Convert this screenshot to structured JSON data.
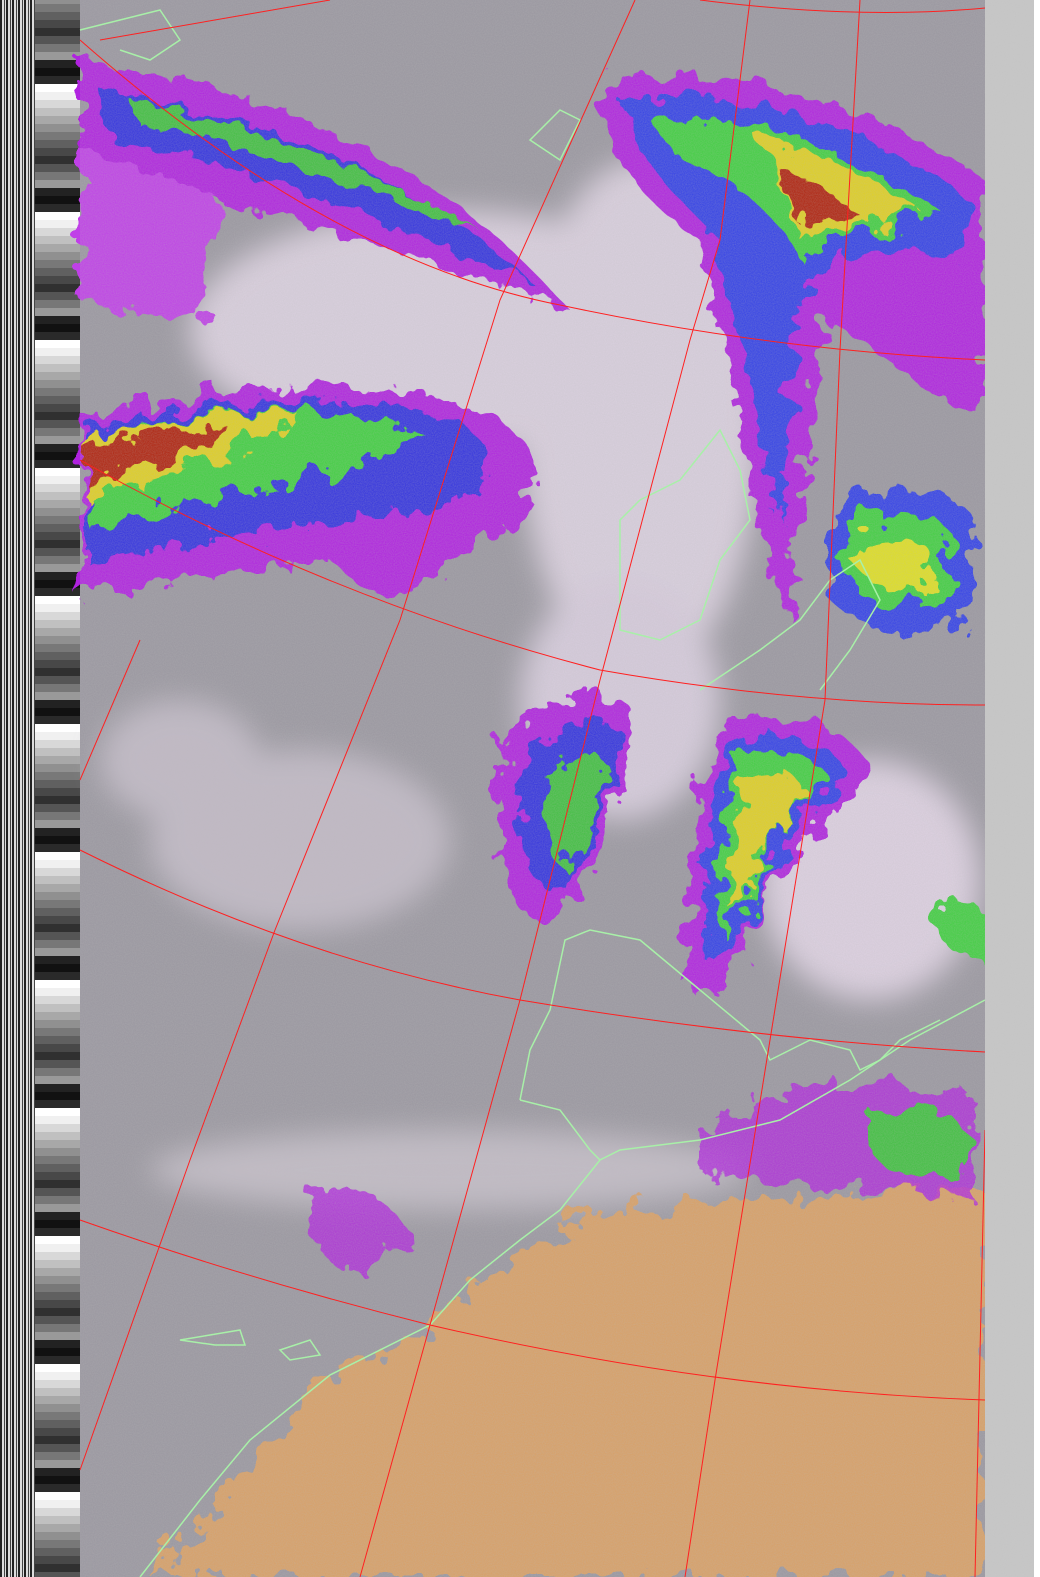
{
  "image": {
    "kind": "satellite-weather-image",
    "colors": {
      "sea_background": "#9a97a0",
      "cloud_light": "#e8d8ee",
      "magenta": "#c020e0",
      "blue": "#3030e0",
      "green": "#40d040",
      "yellow": "#e0e020",
      "red": "#c02010",
      "desert": "#e0a060",
      "graticule": "#ff2020",
      "coastline": "#a0f0a0"
    }
  }
}
